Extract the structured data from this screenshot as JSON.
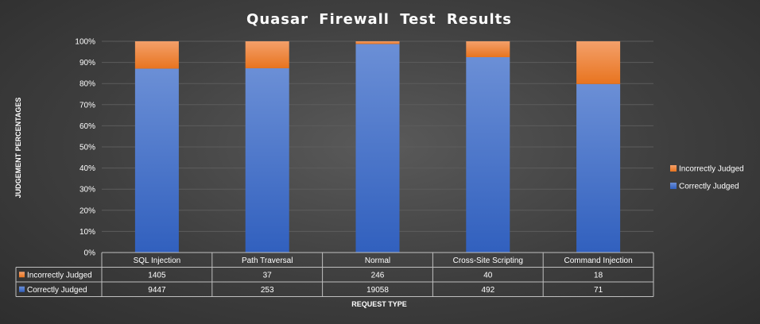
{
  "chart_data": {
    "type": "bar",
    "stacked": "percent",
    "title": "Quasar  Firewall  Test  Results",
    "xlabel": "REQUEST TYPE",
    "ylabel": "JUDGEMENT PERCENTAGES",
    "categories": [
      "SQL Injection",
      "Path Traversal",
      "Normal",
      "Cross-Site Scripting",
      "Command Injection"
    ],
    "series": [
      {
        "name": "Incorrectly Judged",
        "values": [
          1405,
          37,
          246,
          40,
          18
        ],
        "color": "#ed7d31"
      },
      {
        "name": "Correctly Judged",
        "values": [
          9447,
          253,
          19058,
          492,
          71
        ],
        "color": "#4472c4"
      }
    ],
    "yticks": [
      "0%",
      "10%",
      "20%",
      "30%",
      "40%",
      "50%",
      "60%",
      "70%",
      "80%",
      "90%",
      "100%"
    ],
    "ylim": [
      0,
      100
    ],
    "grid": true,
    "legend_position": "right",
    "data_table": true
  }
}
